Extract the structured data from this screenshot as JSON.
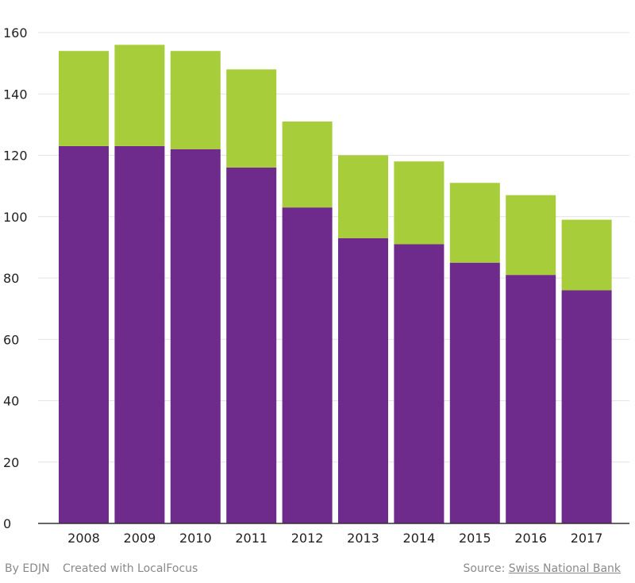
{
  "chart_data": {
    "type": "bar",
    "stacked": true,
    "categories": [
      "2008",
      "2009",
      "2010",
      "2011",
      "2012",
      "2013",
      "2014",
      "2015",
      "2016",
      "2017"
    ],
    "series": [
      {
        "values": [
          123,
          123,
          122,
          116,
          103,
          93,
          91,
          85,
          81,
          76
        ],
        "color": "#6e2b8c"
      },
      {
        "values": [
          31,
          33,
          32,
          32,
          28,
          27,
          27,
          26,
          26,
          23
        ],
        "color": "#a8cd3b"
      }
    ],
    "ylim": [
      0,
      160
    ],
    "yticks": [
      0,
      20,
      40,
      60,
      80,
      100,
      120,
      140,
      160
    ],
    "grid": true,
    "xlabel": "",
    "ylabel": "",
    "title": ""
  },
  "footer": {
    "by": "By EDJN",
    "created": "Created with LocalFocus",
    "source_prefix": "Source:",
    "source_link": "Swiss National Bank"
  }
}
